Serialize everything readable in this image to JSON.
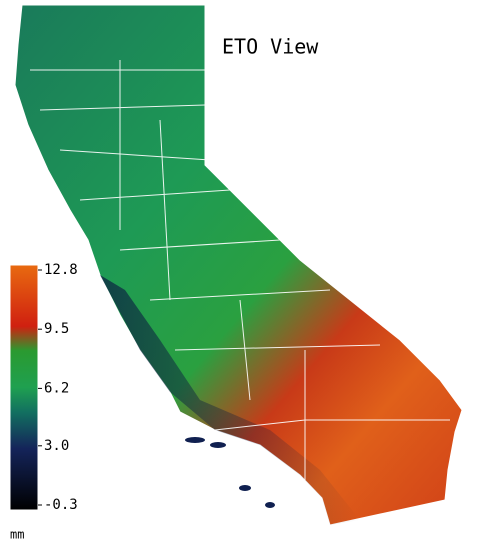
{
  "title": "ETO View",
  "colorbar": {
    "lim": [
      -0.3,
      12.8
    ],
    "ticks": [
      12.8,
      9.5,
      6.2,
      {
        "value": 3,
        "label": "3.0"
      },
      -0.3
    ],
    "unit": "mm"
  }
}
